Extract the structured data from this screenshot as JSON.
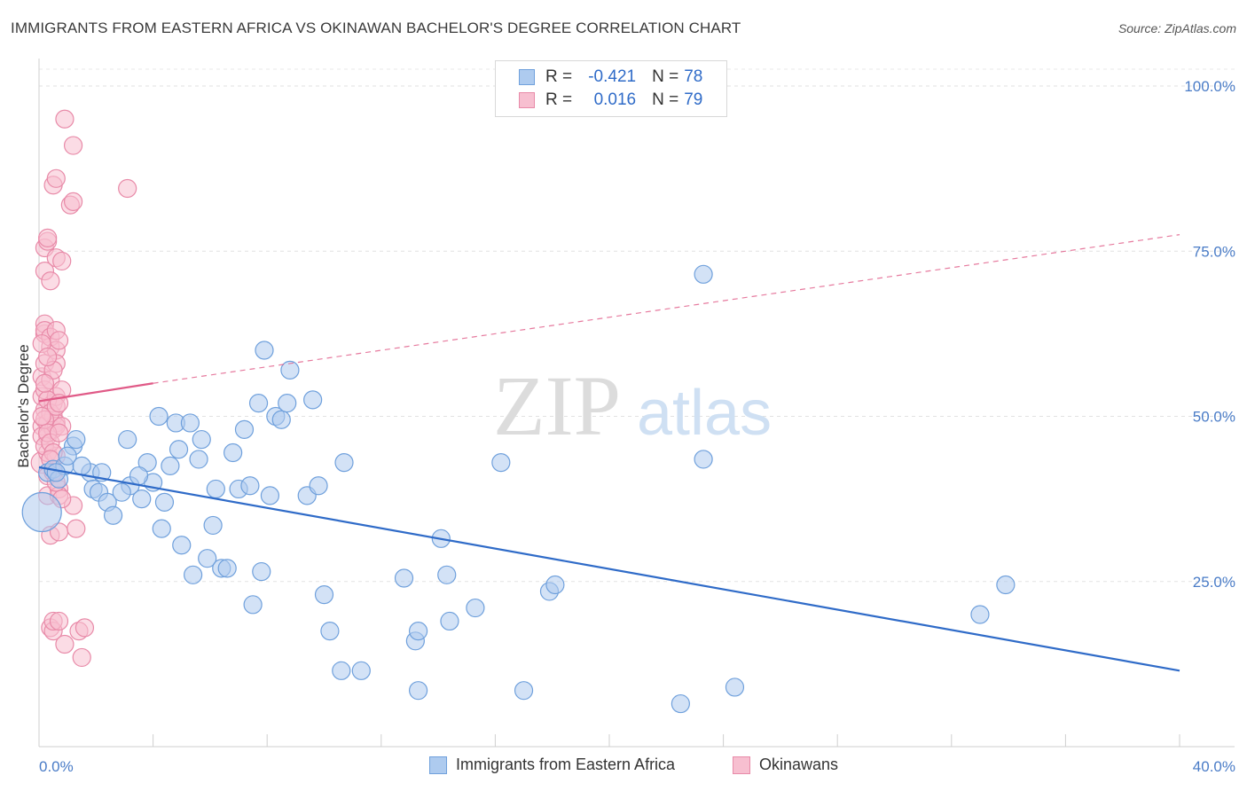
{
  "title": "IMMIGRANTS FROM EASTERN AFRICA VS OKINAWAN BACHELOR'S DEGREE CORRELATION CHART",
  "source": "Source: ZipAtlas.com",
  "watermark": {
    "zip": "ZIP",
    "atlas": "atlas"
  },
  "legend": {
    "rows": [
      {
        "r_label": "R =",
        "r_value": "-0.421",
        "n_label": "N =",
        "n_value": "78",
        "color": "#aecbef",
        "border": "#6fa0dc"
      },
      {
        "r_label": "R =",
        "r_value": "0.016",
        "n_label": "N =",
        "n_value": "79",
        "color": "#f7bfd0",
        "border": "#e88aa8"
      }
    ]
  },
  "bottom_legend": [
    {
      "label": "Immigrants from Eastern Africa",
      "color": "#aecbef",
      "border": "#6fa0dc"
    },
    {
      "label": "Okinawans",
      "color": "#f7bfd0",
      "border": "#e88aa8"
    }
  ],
  "chart_data": {
    "type": "scatter",
    "title": "IMMIGRANTS FROM EASTERN AFRICA VS OKINAWAN BACHELOR'S DEGREE CORRELATION CHART",
    "xlabel": "",
    "ylabel": "Bachelor's Degree",
    "xlim": [
      0,
      40
    ],
    "ylim": [
      0,
      100
    ],
    "x_tick_labels": [
      "0.0%",
      "40.0%"
    ],
    "y_ticks": [
      25,
      50,
      75,
      100
    ],
    "y_tick_labels": [
      "25.0%",
      "50.0%",
      "75.0%",
      "100.0%"
    ],
    "grid": "dashed horizontal",
    "series": [
      {
        "name": "Immigrants from Eastern Africa",
        "color": "#6fa0dc",
        "fill": "#aecbef",
        "trend": {
          "x": [
            0,
            40
          ],
          "y": [
            42.3,
            11.5
          ],
          "style": "solid",
          "color": "#2f6bc8"
        },
        "points": [
          [
            0.1,
            35.5,
            22
          ],
          [
            0.3,
            41.5,
            10
          ],
          [
            0.5,
            42,
            10
          ],
          [
            0.7,
            40.5,
            10
          ],
          [
            0.9,
            42.5,
            10
          ],
          [
            1.2,
            45.5,
            10
          ],
          [
            1.3,
            46.5,
            10
          ],
          [
            1.0,
            44,
            10
          ],
          [
            1.8,
            41.5,
            10
          ],
          [
            2.2,
            41.5,
            10
          ],
          [
            1.9,
            39,
            10
          ],
          [
            2.1,
            38.5,
            10
          ],
          [
            2.4,
            37,
            10
          ],
          [
            2.6,
            35,
            10
          ],
          [
            3.1,
            46.5,
            10
          ],
          [
            3.2,
            39.5,
            10
          ],
          [
            3.6,
            37.5,
            10
          ],
          [
            3.8,
            43,
            10
          ],
          [
            4.0,
            40,
            10
          ],
          [
            4.2,
            50,
            10
          ],
          [
            4.4,
            37,
            10
          ],
          [
            4.3,
            33,
            10
          ],
          [
            4.8,
            49,
            10
          ],
          [
            4.9,
            45,
            10
          ],
          [
            5.0,
            30.5,
            10
          ],
          [
            5.3,
            49,
            10
          ],
          [
            5.6,
            43.5,
            10
          ],
          [
            5.7,
            46.5,
            10
          ],
          [
            5.9,
            28.5,
            10
          ],
          [
            6.1,
            33.5,
            10
          ],
          [
            5.4,
            26,
            10
          ],
          [
            6.4,
            27,
            10
          ],
          [
            6.6,
            27,
            10
          ],
          [
            6.8,
            44.5,
            10
          ],
          [
            7.0,
            39,
            10
          ],
          [
            7.2,
            48,
            10
          ],
          [
            7.4,
            39.5,
            10
          ],
          [
            7.5,
            21.5,
            10
          ],
          [
            7.7,
            52,
            10
          ],
          [
            7.8,
            26.5,
            10
          ],
          [
            7.9,
            60,
            10
          ],
          [
            8.1,
            38,
            10
          ],
          [
            8.3,
            50,
            10
          ],
          [
            8.5,
            49.5,
            10
          ],
          [
            8.7,
            52,
            10
          ],
          [
            8.8,
            57,
            10
          ],
          [
            9.4,
            38,
            10
          ],
          [
            9.6,
            52.5,
            10
          ],
          [
            9.8,
            39.5,
            10
          ],
          [
            10.0,
            23,
            10
          ],
          [
            10.2,
            17.5,
            10
          ],
          [
            10.6,
            11.5,
            10
          ],
          [
            10.7,
            43,
            10
          ],
          [
            11.3,
            11.5,
            10
          ],
          [
            12.8,
            25.5,
            10
          ],
          [
            13.2,
            16,
            10
          ],
          [
            13.3,
            17.5,
            10
          ],
          [
            13.3,
            8.5,
            10
          ],
          [
            14.1,
            31.5,
            10
          ],
          [
            14.3,
            26,
            10
          ],
          [
            14.4,
            19,
            10
          ],
          [
            15.3,
            21,
            10
          ],
          [
            16.2,
            43,
            10
          ],
          [
            17.0,
            8.5,
            10
          ],
          [
            17.9,
            23.5,
            10
          ],
          [
            18.1,
            24.5,
            10
          ],
          [
            22.5,
            6.5,
            10
          ],
          [
            23.3,
            71.5,
            10
          ],
          [
            23.3,
            43.5,
            10
          ],
          [
            24.4,
            9,
            10
          ],
          [
            33.0,
            20,
            10
          ],
          [
            33.9,
            24.5,
            10
          ],
          [
            0.6,
            41.5,
            10
          ],
          [
            1.5,
            42.5,
            10
          ],
          [
            2.9,
            38.5,
            10
          ],
          [
            3.5,
            41,
            10
          ],
          [
            4.6,
            42.5,
            10
          ],
          [
            6.2,
            39,
            10
          ]
        ]
      },
      {
        "name": "Okinawans",
        "color": "#e88aa8",
        "fill": "#f7bfd0",
        "trend": {
          "x": [
            0,
            4
          ],
          "y": [
            52.3,
            55
          ],
          "style": "solid",
          "color": "#e05a87",
          "extension": {
            "x": [
              4,
              40
            ],
            "y": [
              55,
              77.5
            ],
            "style": "dashed"
          }
        },
        "points": [
          [
            0.1,
            43,
            12
          ],
          [
            0.1,
            56,
            10
          ],
          [
            0.1,
            48.5,
            10
          ],
          [
            0.1,
            53,
            10
          ],
          [
            0.2,
            51,
            10
          ],
          [
            0.2,
            54,
            10
          ],
          [
            0.2,
            58,
            10
          ],
          [
            0.2,
            62.5,
            10
          ],
          [
            0.2,
            64,
            10
          ],
          [
            0.2,
            63,
            10
          ],
          [
            0.2,
            72,
            10
          ],
          [
            0.2,
            75.5,
            10
          ],
          [
            0.3,
            76.5,
            10
          ],
          [
            0.3,
            77,
            10
          ],
          [
            0.3,
            49,
            10
          ],
          [
            0.3,
            47,
            10
          ],
          [
            0.3,
            44.5,
            10
          ],
          [
            0.3,
            41,
            10
          ],
          [
            0.3,
            38,
            10
          ],
          [
            0.4,
            32,
            10
          ],
          [
            0.4,
            18,
            10
          ],
          [
            0.4,
            70.5,
            10
          ],
          [
            0.4,
            60.5,
            10
          ],
          [
            0.4,
            62,
            10
          ],
          [
            0.4,
            55.5,
            10
          ],
          [
            0.5,
            85,
            10
          ],
          [
            0.5,
            50,
            10
          ],
          [
            0.5,
            48,
            10
          ],
          [
            0.5,
            52,
            10
          ],
          [
            0.5,
            17.5,
            10
          ],
          [
            0.5,
            19,
            10
          ],
          [
            0.6,
            86,
            10
          ],
          [
            0.6,
            74,
            10
          ],
          [
            0.6,
            63,
            10
          ],
          [
            0.6,
            60,
            10
          ],
          [
            0.6,
            58,
            10
          ],
          [
            0.6,
            53,
            10
          ],
          [
            0.6,
            49,
            10
          ],
          [
            0.6,
            48.5,
            10
          ],
          [
            0.6,
            44,
            10
          ],
          [
            0.7,
            39,
            10
          ],
          [
            0.7,
            38,
            10
          ],
          [
            0.7,
            32.5,
            10
          ],
          [
            0.7,
            19,
            10
          ],
          [
            0.7,
            61.5,
            10
          ],
          [
            0.8,
            54,
            10
          ],
          [
            0.8,
            48.5,
            10
          ],
          [
            0.8,
            73.5,
            10
          ],
          [
            0.9,
            95,
            10
          ],
          [
            0.9,
            15.5,
            10
          ],
          [
            1.1,
            82,
            10
          ],
          [
            1.2,
            91,
            10
          ],
          [
            1.2,
            82.5,
            10
          ],
          [
            1.2,
            36.5,
            10
          ],
          [
            1.3,
            33,
            10
          ],
          [
            1.4,
            17.5,
            10
          ],
          [
            1.5,
            13.5,
            10
          ],
          [
            1.6,
            18,
            10
          ],
          [
            3.1,
            84.5,
            10
          ],
          [
            0.1,
            47,
            10
          ],
          [
            0.2,
            45.5,
            10
          ],
          [
            0.3,
            52.5,
            10
          ],
          [
            0.4,
            50.5,
            10
          ],
          [
            0.5,
            57,
            10
          ],
          [
            0.1,
            61,
            10
          ],
          [
            0.2,
            49.5,
            10
          ],
          [
            0.3,
            47.5,
            10
          ],
          [
            0.4,
            46,
            10
          ],
          [
            0.5,
            44.5,
            10
          ],
          [
            0.6,
            51.5,
            10
          ],
          [
            0.7,
            47.5,
            10
          ],
          [
            0.1,
            50,
            10
          ],
          [
            0.2,
            55,
            10
          ],
          [
            0.3,
            59,
            10
          ],
          [
            0.4,
            43.5,
            10
          ],
          [
            0.5,
            41.5,
            10
          ],
          [
            0.6,
            40,
            10
          ],
          [
            0.7,
            52,
            10
          ],
          [
            0.8,
            37.5,
            10
          ]
        ]
      }
    ]
  }
}
